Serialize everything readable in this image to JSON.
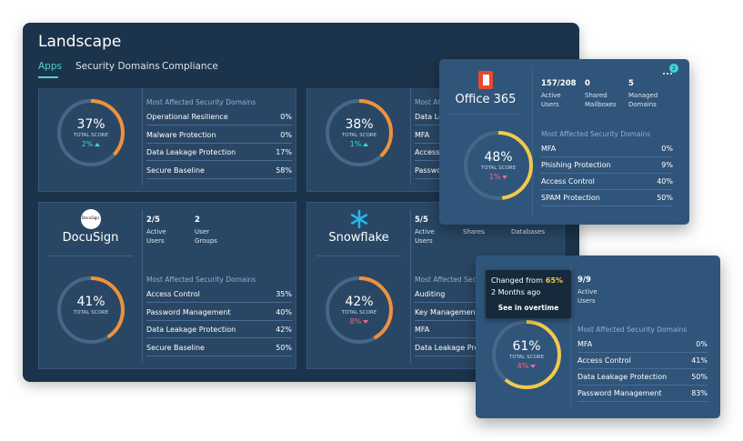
{
  "header": {
    "title": "Landscape",
    "tabs": [
      "Apps",
      "Security Domains",
      "Compliance"
    ],
    "active_tab": 0
  },
  "cards": [
    {
      "score": "37%",
      "score_label": "TOTAL SCORE",
      "delta": "2%",
      "trend": "up",
      "domains_title": "Most Affected Security Domains",
      "domains": [
        {
          "name": "Operational Resilience",
          "value": "0%"
        },
        {
          "name": "Malware Protection",
          "value": "0%"
        },
        {
          "name": "Data Leakage Protection",
          "value": "17%"
        },
        {
          "name": "Secure Baseline",
          "value": "58%"
        }
      ]
    },
    {
      "score": "38%",
      "score_label": "TOTAL SCORE",
      "delta": "1%",
      "trend": "up",
      "domains_title": "Most Affected Security Domains",
      "domains": [
        {
          "name": "Data Leakage Protection"
        },
        {
          "name": "MFA"
        },
        {
          "name": "Access Control"
        },
        {
          "name": "Password Management"
        }
      ]
    },
    {
      "logo_text": "DocuSign",
      "name": "DocuSign",
      "stats": [
        {
          "value": "2/5",
          "label": "Active Users"
        },
        {
          "value": "2",
          "label": "User Groups"
        }
      ],
      "score": "41%",
      "score_label": "TOTAL SCORE",
      "domains_title": "Most Affected Security Domains",
      "domains": [
        {
          "name": "Access Control",
          "value": "35%"
        },
        {
          "name": "Password Management",
          "value": "40%"
        },
        {
          "name": "Data Leakage Protection",
          "value": "42%"
        },
        {
          "name": "Secure Baseline",
          "value": "50%"
        }
      ]
    },
    {
      "name": "Snowflake",
      "stats": [
        {
          "value": "5/5",
          "label": "Active Users"
        },
        {
          "label": "Shares"
        },
        {
          "label": "Databases"
        }
      ],
      "score": "42%",
      "score_label": "TOTAL SCORE",
      "delta": "8%",
      "trend": "down",
      "domains_title": "Most Affected Security Domains",
      "domains": [
        {
          "name": "Auditing"
        },
        {
          "name": "Key Management"
        },
        {
          "name": "MFA"
        },
        {
          "name": "Data Leakage Protection"
        }
      ]
    }
  ],
  "popups": [
    {
      "name": "Office 365",
      "badge": "2",
      "stats": [
        {
          "value": "157/208",
          "label": "Active Users"
        },
        {
          "value": "0",
          "label": "Shared Mailboxes"
        },
        {
          "value": "5",
          "label": "Managed Domains"
        }
      ],
      "score": "48%",
      "score_label": "TOTAL SCORE",
      "delta": "1%",
      "trend": "down",
      "domains_title": "Most Affected Security Domains",
      "domains": [
        {
          "name": "MFA",
          "value": "0%"
        },
        {
          "name": "Phishing Protection",
          "value": "9%"
        },
        {
          "name": "Access Control",
          "value": "40%"
        },
        {
          "name": "SPAM Protection",
          "value": "50%"
        }
      ]
    },
    {
      "tooltip": {
        "text": "Changed from",
        "value": "65%",
        "time": "2 Months ago",
        "link": "See in overtime"
      },
      "stats": [
        {
          "value": "9/9",
          "label": "Active Users"
        }
      ],
      "score": "61%",
      "score_label": "TOTAL SCORE",
      "delta": "4%",
      "trend": "down",
      "domains_title": "Most Affected Security Domains",
      "domains": [
        {
          "name": "MFA",
          "value": "0%"
        },
        {
          "name": "Access Control",
          "value": "41%"
        },
        {
          "name": "Data Leakage Protection",
          "value": "50%"
        },
        {
          "name": "Password Management",
          "value": "83%"
        }
      ]
    }
  ]
}
